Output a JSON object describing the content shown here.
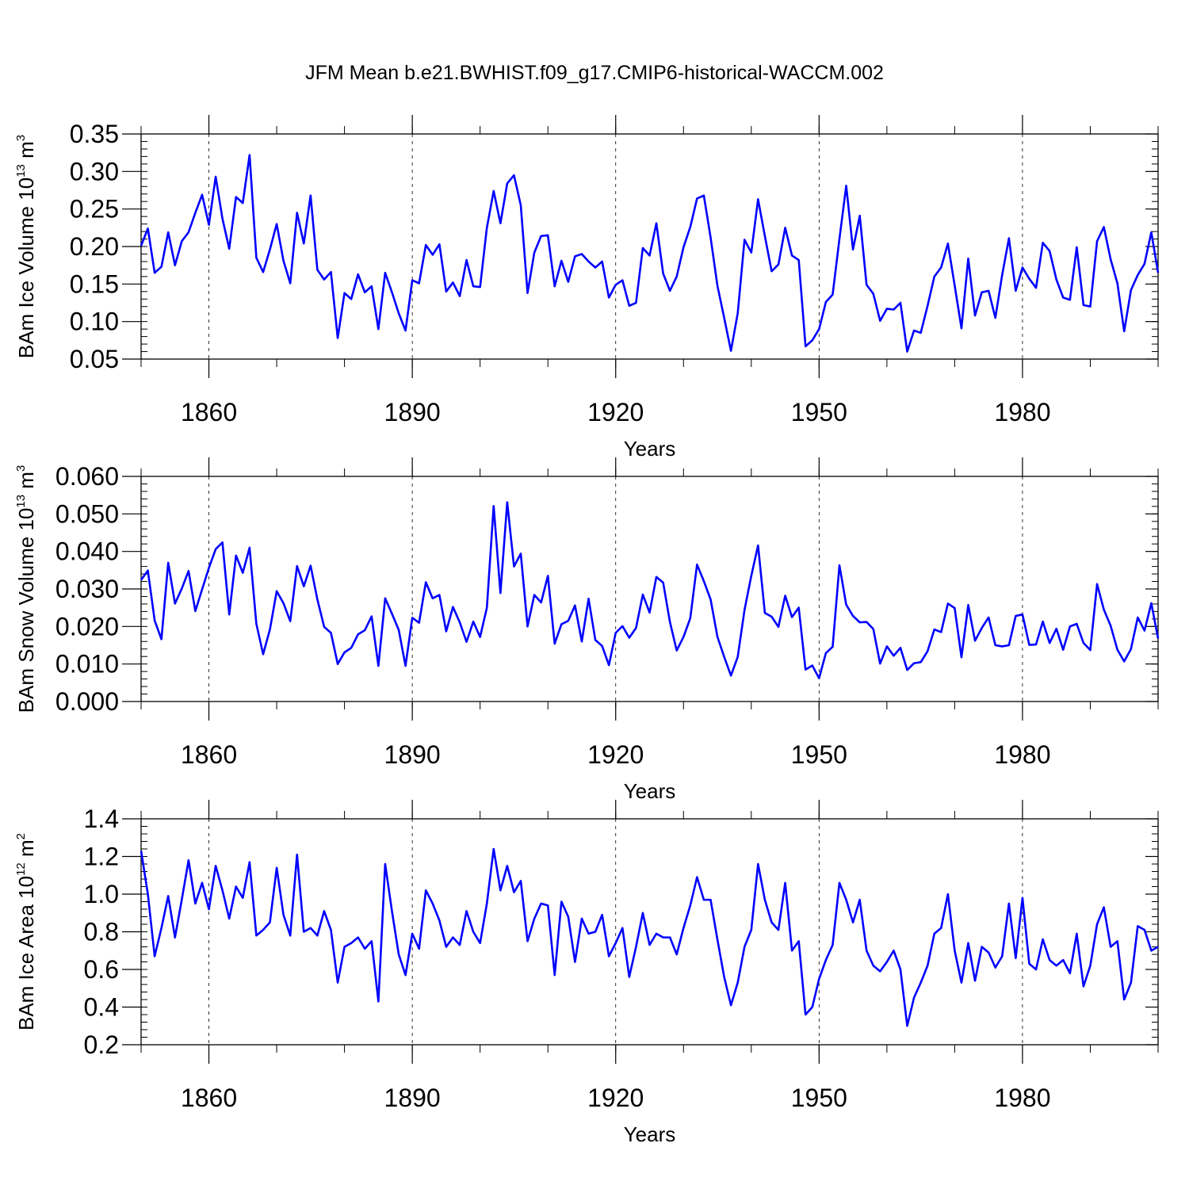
{
  "figure": {
    "title": "JFM Mean b.e21.BWHIST.f09_g17.CMIP6-historical-WACCM.002"
  },
  "chart_data": [
    {
      "type": "line",
      "name": "ice-volume",
      "title": "JFM Mean b.e21.BWHIST.f09_g17.CMIP6-historical-WACCM.002",
      "ylabel": {
        "text": "BAm Ice Volume 10",
        "exp": "13",
        "unit": " m",
        "unit_exp": "3"
      },
      "xlabel": "Years",
      "xlim": [
        1850,
        2000
      ],
      "ylim": [
        0.05,
        0.35
      ],
      "yticks": [
        0.05,
        0.1,
        0.15,
        0.2,
        0.25,
        0.3,
        0.35
      ],
      "ytick_labels": [
        "0.05",
        "0.10",
        "0.15",
        "0.20",
        "0.25",
        "0.30",
        "0.35"
      ],
      "xticks": [
        1860,
        1890,
        1920,
        1950,
        1980
      ],
      "xtick_labels": [
        "1860",
        "1890",
        "1920",
        "1950",
        "1980"
      ],
      "grid": "dashed vertical at major x ticks",
      "color": "#0000ff",
      "x_start": 1850,
      "values": [
        0.201,
        0.224,
        0.165,
        0.173,
        0.219,
        0.175,
        0.207,
        0.219,
        0.245,
        0.269,
        0.229,
        0.293,
        0.237,
        0.197,
        0.266,
        0.258,
        0.322,
        0.185,
        0.166,
        0.196,
        0.23,
        0.181,
        0.151,
        0.245,
        0.204,
        0.268,
        0.169,
        0.156,
        0.166,
        0.078,
        0.138,
        0.13,
        0.163,
        0.139,
        0.147,
        0.09,
        0.165,
        0.139,
        0.111,
        0.088,
        0.155,
        0.151,
        0.202,
        0.189,
        0.203,
        0.14,
        0.152,
        0.134,
        0.182,
        0.147,
        0.146,
        0.225,
        0.274,
        0.231,
        0.284,
        0.295,
        0.255,
        0.138,
        0.192,
        0.214,
        0.215,
        0.147,
        0.181,
        0.153,
        0.187,
        0.19,
        0.18,
        0.172,
        0.18,
        0.132,
        0.149,
        0.155,
        0.121,
        0.125,
        0.198,
        0.188,
        0.231,
        0.164,
        0.141,
        0.16,
        0.199,
        0.226,
        0.264,
        0.268,
        0.212,
        0.148,
        0.105,
        0.061,
        0.111,
        0.209,
        0.192,
        0.263,
        0.214,
        0.167,
        0.176,
        0.225,
        0.188,
        0.182,
        0.067,
        0.075,
        0.09,
        0.126,
        0.136,
        0.21,
        0.281,
        0.196,
        0.241,
        0.149,
        0.137,
        0.101,
        0.117,
        0.116,
        0.125,
        0.06,
        0.088,
        0.085,
        0.121,
        0.16,
        0.172,
        0.204,
        0.148,
        0.091,
        0.184,
        0.108,
        0.139,
        0.141,
        0.105,
        0.162,
        0.211,
        0.141,
        0.172,
        0.157,
        0.145,
        0.205,
        0.194,
        0.156,
        0.132,
        0.129,
        0.199,
        0.122,
        0.12,
        0.207,
        0.226,
        0.183,
        0.151,
        0.087,
        0.142,
        0.162,
        0.177,
        0.219,
        0.165
      ]
    },
    {
      "type": "line",
      "name": "snow-volume",
      "ylabel": {
        "text": "BAm Snow Volume 10",
        "exp": "13",
        "unit": " m",
        "unit_exp": "3"
      },
      "xlabel": "Years",
      "xlim": [
        1850,
        2000
      ],
      "ylim": [
        0.0,
        0.06
      ],
      "yticks": [
        0.0,
        0.01,
        0.02,
        0.03,
        0.04,
        0.05,
        0.06
      ],
      "ytick_labels": [
        "0.000",
        "0.010",
        "0.020",
        "0.030",
        "0.040",
        "0.050",
        "0.060"
      ],
      "xticks": [
        1860,
        1890,
        1920,
        1950,
        1980
      ],
      "xtick_labels": [
        "1860",
        "1890",
        "1920",
        "1950",
        "1980"
      ],
      "grid": "dashed vertical at major x ticks",
      "color": "#0000ff",
      "x_start": 1850,
      "values": [
        0.0324,
        0.0349,
        0.0216,
        0.0166,
        0.037,
        0.0261,
        0.0301,
        0.0348,
        0.0241,
        0.0299,
        0.0356,
        0.0406,
        0.0424,
        0.0232,
        0.0389,
        0.0343,
        0.041,
        0.0207,
        0.0126,
        0.0192,
        0.0294,
        0.0262,
        0.0214,
        0.0361,
        0.0307,
        0.0362,
        0.0272,
        0.0199,
        0.0183,
        0.01,
        0.0131,
        0.0143,
        0.0179,
        0.019,
        0.0227,
        0.0095,
        0.0275,
        0.0234,
        0.0191,
        0.0095,
        0.0223,
        0.021,
        0.0318,
        0.0275,
        0.0284,
        0.0187,
        0.0252,
        0.0211,
        0.0159,
        0.0213,
        0.0172,
        0.025,
        0.0521,
        0.0289,
        0.0531,
        0.036,
        0.0394,
        0.02,
        0.0284,
        0.0264,
        0.0335,
        0.0154,
        0.0206,
        0.0215,
        0.0256,
        0.016,
        0.0274,
        0.0164,
        0.0148,
        0.0097,
        0.0183,
        0.0201,
        0.017,
        0.0196,
        0.0285,
        0.0237,
        0.0332,
        0.0317,
        0.0212,
        0.0136,
        0.0172,
        0.0222,
        0.0365,
        0.0321,
        0.0272,
        0.0173,
        0.0119,
        0.0069,
        0.0119,
        0.0244,
        0.0335,
        0.0416,
        0.0236,
        0.0226,
        0.0199,
        0.0282,
        0.0225,
        0.025,
        0.0085,
        0.0096,
        0.0062,
        0.0129,
        0.0146,
        0.0363,
        0.0258,
        0.0228,
        0.0211,
        0.0212,
        0.0193,
        0.0101,
        0.0147,
        0.0122,
        0.0143,
        0.0084,
        0.0102,
        0.0105,
        0.0134,
        0.0192,
        0.0185,
        0.0261,
        0.0249,
        0.0118,
        0.0257,
        0.0162,
        0.0196,
        0.0224,
        0.015,
        0.0147,
        0.015,
        0.0228,
        0.0232,
        0.0151,
        0.0152,
        0.0213,
        0.0156,
        0.0194,
        0.0138,
        0.02,
        0.0207,
        0.0156,
        0.0137,
        0.0313,
        0.0245,
        0.0202,
        0.0138,
        0.0107,
        0.014,
        0.0224,
        0.0189,
        0.0262,
        0.0168
      ]
    },
    {
      "type": "line",
      "name": "ice-area",
      "ylabel": {
        "text": "BAm Ice Area 10",
        "exp": "12",
        "unit": " m",
        "unit_exp": "2"
      },
      "xlabel": "Years",
      "xlim": [
        1850,
        2000
      ],
      "ylim": [
        0.2,
        1.4
      ],
      "yticks": [
        0.2,
        0.4,
        0.6,
        0.8,
        1.0,
        1.2,
        1.4
      ],
      "ytick_labels": [
        "0.2",
        "0.4",
        "0.6",
        "0.8",
        "1.0",
        "1.2",
        "1.4"
      ],
      "xticks": [
        1860,
        1890,
        1920,
        1950,
        1980
      ],
      "xtick_labels": [
        "1860",
        "1890",
        "1920",
        "1950",
        "1980"
      ],
      "grid": "dashed vertical at major x ticks",
      "color": "#0000ff",
      "x_start": 1850,
      "values": [
        1.23,
        1.0,
        0.67,
        0.82,
        0.99,
        0.77,
        0.97,
        1.18,
        0.95,
        1.06,
        0.92,
        1.15,
        1.02,
        0.87,
        1.04,
        0.98,
        1.17,
        0.78,
        0.81,
        0.85,
        1.14,
        0.89,
        0.78,
        1.21,
        0.8,
        0.82,
        0.78,
        0.91,
        0.81,
        0.53,
        0.72,
        0.74,
        0.77,
        0.71,
        0.75,
        0.43,
        1.16,
        0.91,
        0.68,
        0.57,
        0.79,
        0.71,
        1.02,
        0.95,
        0.86,
        0.72,
        0.77,
        0.73,
        0.91,
        0.8,
        0.74,
        0.95,
        1.24,
        1.02,
        1.15,
        1.01,
        1.07,
        0.75,
        0.87,
        0.95,
        0.94,
        0.57,
        0.96,
        0.88,
        0.64,
        0.87,
        0.79,
        0.8,
        0.89,
        0.67,
        0.74,
        0.82,
        0.56,
        0.72,
        0.9,
        0.73,
        0.79,
        0.77,
        0.77,
        0.68,
        0.82,
        0.94,
        1.09,
        0.97,
        0.97,
        0.76,
        0.56,
        0.41,
        0.53,
        0.72,
        0.81,
        1.16,
        0.97,
        0.85,
        0.81,
        1.06,
        0.7,
        0.75,
        0.36,
        0.4,
        0.55,
        0.65,
        0.73,
        1.06,
        0.97,
        0.85,
        0.97,
        0.7,
        0.62,
        0.59,
        0.64,
        0.7,
        0.6,
        0.3,
        0.45,
        0.53,
        0.62,
        0.79,
        0.82,
        1.0,
        0.7,
        0.53,
        0.74,
        0.54,
        0.72,
        0.69,
        0.61,
        0.67,
        0.95,
        0.66,
        0.98,
        0.63,
        0.6,
        0.76,
        0.65,
        0.62,
        0.65,
        0.58,
        0.79,
        0.51,
        0.62,
        0.84,
        0.93,
        0.72,
        0.75,
        0.44,
        0.53,
        0.83,
        0.81,
        0.7,
        0.72
      ]
    }
  ]
}
